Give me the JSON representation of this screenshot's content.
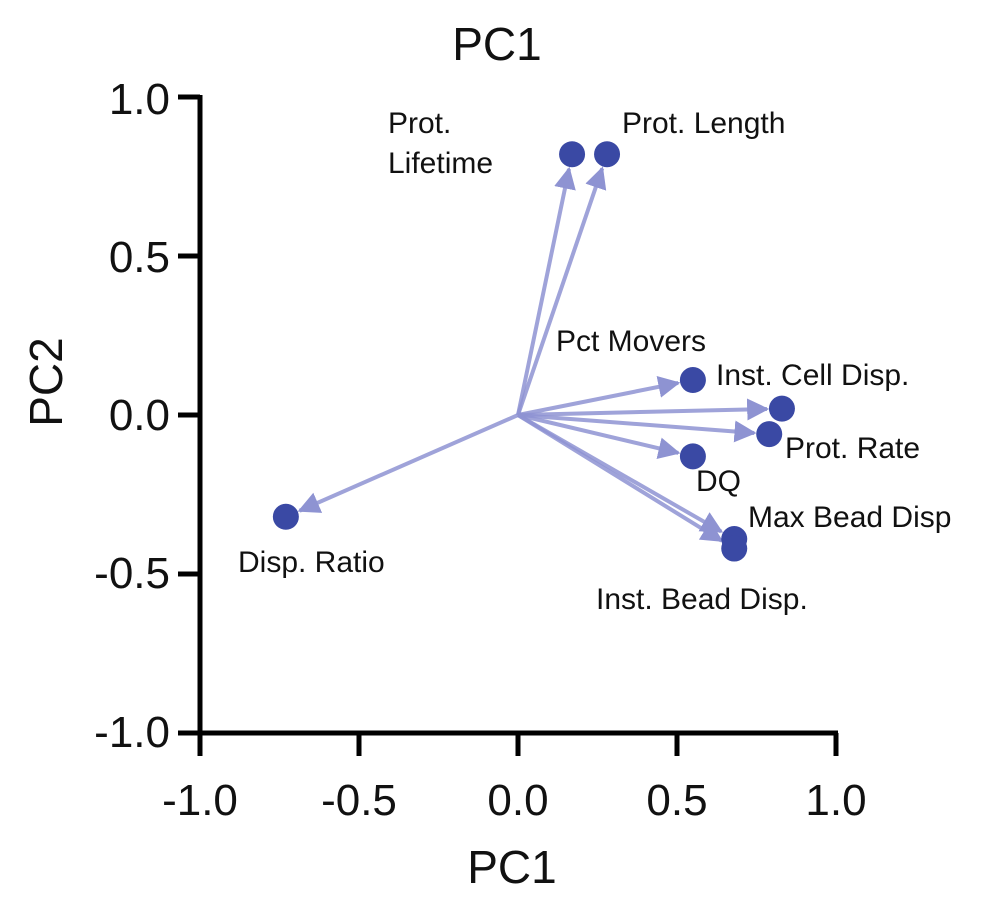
{
  "chart_data": {
    "type": "scatter",
    "title": "PC1",
    "xlabel": "PC1",
    "ylabel": "PC2",
    "xlim": [
      -1.0,
      1.0
    ],
    "ylim": [
      -1.0,
      1.0
    ],
    "xticks": [
      "-1.0",
      "-0.5",
      "0.0",
      "0.5",
      "1.0"
    ],
    "yticks": [
      "1.0",
      "0.5",
      "0.0",
      "-0.5",
      "-1.0"
    ],
    "grid": false,
    "origin": [
      0.0,
      0.0
    ],
    "point_color": "#3a49a4",
    "arrow_color": "#8e93d2",
    "points": [
      {
        "label": "Prot. Lifetime",
        "label_lines": [
          "Prot.",
          "Lifetime"
        ],
        "x": 0.17,
        "y": 0.82
      },
      {
        "label": "Prot. Length",
        "label_lines": [
          "Prot. Length"
        ],
        "x": 0.28,
        "y": 0.82
      },
      {
        "label": "Pct Movers",
        "label_lines": [
          "Pct Movers"
        ],
        "x": 0.55,
        "y": 0.11
      },
      {
        "label": "Inst. Cell Disp.",
        "label_lines": [
          "Inst. Cell Disp."
        ],
        "x": 0.83,
        "y": 0.02
      },
      {
        "label": "Prot. Rate",
        "label_lines": [
          "Prot. Rate"
        ],
        "x": 0.79,
        "y": -0.06
      },
      {
        "label": "DQ",
        "label_lines": [
          "DQ"
        ],
        "x": 0.55,
        "y": -0.13
      },
      {
        "label": "Max Bead Disp",
        "label_lines": [
          "Max Bead Disp"
        ],
        "x": 0.68,
        "y": -0.39
      },
      {
        "label": "Inst. Bead Disp.",
        "label_lines": [
          "Inst. Bead Disp."
        ],
        "x": 0.68,
        "y": -0.42
      },
      {
        "label": "Disp. Ratio",
        "label_lines": [
          "Disp. Ratio"
        ],
        "x": -0.73,
        "y": -0.32
      }
    ]
  }
}
